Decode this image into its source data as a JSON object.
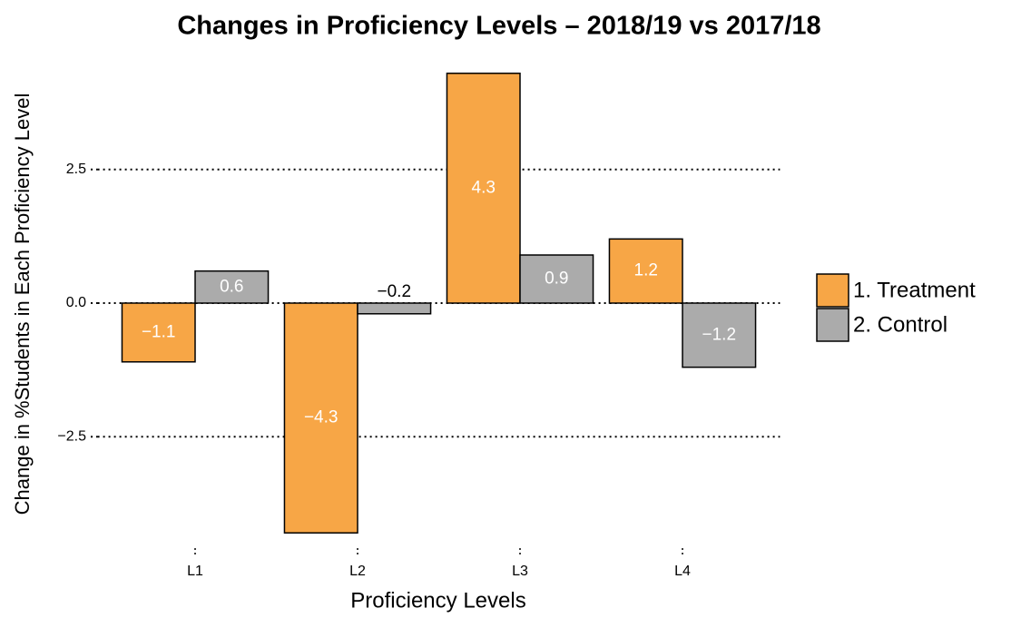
{
  "chart_data": {
    "type": "bar",
    "title": "Changes in Proficiency Levels – 2018/19 vs 2017/18",
    "x_label": "Proficiency Levels",
    "y_label": "Change in %Students in Each Proficiency Level",
    "categories": [
      "L1",
      "L2",
      "L3",
      "L4"
    ],
    "series": [
      {
        "name": "1. Treatment",
        "color": "#f7a646",
        "values": [
          -1.1,
          -4.3,
          4.3,
          1.2
        ],
        "value_labels": [
          "−1.1",
          "−4.3",
          "4.3",
          "1.2"
        ]
      },
      {
        "name": "2. Control",
        "color": "#ababab",
        "values": [
          0.6,
          -0.2,
          0.9,
          -1.2
        ],
        "value_labels": [
          "0.6",
          "−0.2",
          "0.9",
          "−1.2"
        ]
      }
    ],
    "ylim": [
      -4.5,
      4.5
    ],
    "yticks": [
      {
        "value": -2.5,
        "label": "−2.5"
      },
      {
        "value": 0,
        "label": "0.0"
      },
      2.5
    ],
    "grid": true,
    "legend": "right"
  }
}
